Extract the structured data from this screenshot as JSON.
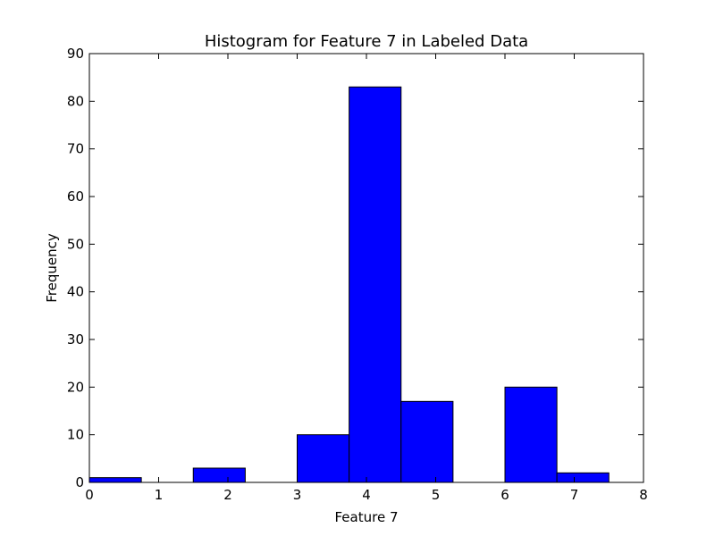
{
  "chart_data": {
    "type": "bar",
    "title": "Histogram for Feature 7 in Labeled Data",
    "xlabel": "Feature 7",
    "ylabel": "Frequency",
    "xlim": [
      0,
      8
    ],
    "ylim": [
      0,
      90
    ],
    "x_ticks": [
      0,
      1,
      2,
      3,
      4,
      5,
      6,
      7,
      8
    ],
    "y_ticks": [
      0,
      10,
      20,
      30,
      40,
      50,
      60,
      70,
      80,
      90
    ],
    "bins": [
      {
        "start": 0.0,
        "end": 0.75,
        "count": 1
      },
      {
        "start": 0.75,
        "end": 1.5,
        "count": 0
      },
      {
        "start": 1.5,
        "end": 2.25,
        "count": 3
      },
      {
        "start": 2.25,
        "end": 3.0,
        "count": 0
      },
      {
        "start": 3.0,
        "end": 3.75,
        "count": 10
      },
      {
        "start": 3.75,
        "end": 4.5,
        "count": 83
      },
      {
        "start": 4.5,
        "end": 5.25,
        "count": 17
      },
      {
        "start": 5.25,
        "end": 6.0,
        "count": 0
      },
      {
        "start": 6.0,
        "end": 6.75,
        "count": 20
      },
      {
        "start": 6.75,
        "end": 7.5,
        "count": 2
      }
    ],
    "bar_color": "#0000ff",
    "edge_color": "#000000",
    "grid": false,
    "legend": "none"
  }
}
